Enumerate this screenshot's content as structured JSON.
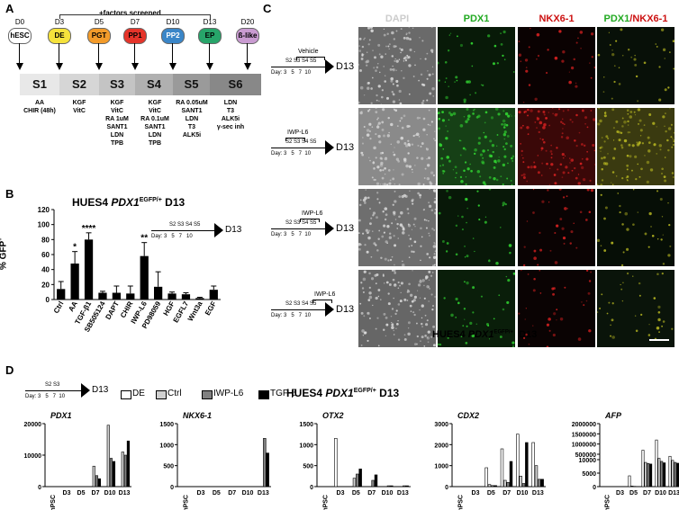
{
  "panelA": {
    "label": "A",
    "screened_label": "+factors screened",
    "days": [
      "D0",
      "D3",
      "D5",
      "D7",
      "D10",
      "D13",
      "D20"
    ],
    "nodes": [
      {
        "name": "hESC",
        "color": "#ffffff"
      },
      {
        "name": "DE",
        "color": "#f5e23c"
      },
      {
        "name": "PGT",
        "color": "#f39b2a"
      },
      {
        "name": "PP1",
        "color": "#e5342a"
      },
      {
        "name": "PP2",
        "color": "#3a86c8"
      },
      {
        "name": "EP",
        "color": "#27a56a"
      },
      {
        "name": "ß-like",
        "color": "#c99bd1"
      }
    ],
    "stages": [
      "S1",
      "S2",
      "S3",
      "S4",
      "S5",
      "S6"
    ],
    "conditions": [
      [
        "AA",
        "CHIR (48h)"
      ],
      [
        "KGF",
        "VitC"
      ],
      [
        "KGF",
        "VitC",
        "RA 1uM",
        "SANT1",
        "LDN",
        "TPB"
      ],
      [
        "KGF",
        "VitC",
        "RA 0.1uM",
        "SANT1",
        "LDN",
        "TPB"
      ],
      [
        "RA 0.05uM",
        "SANT1",
        "LDN",
        "T3",
        "ALK5i"
      ],
      [
        "LDN",
        "T3",
        "ALK5i",
        "γ-sec inh"
      ]
    ]
  },
  "panelB": {
    "label": "B",
    "title_prefix": "HUES4 ",
    "title_gene": "PDX1",
    "title_sup": "EGFP/+",
    "title_suffix": " D13",
    "ylabel": "% GFP",
    "ylabel_sup": "+",
    "inset_day_label": "Day: 3   5   7   10",
    "inset_stages": "S2 S3 S4 S5",
    "inset_end": "D13"
  },
  "chart_data": [
    {
      "type": "bar",
      "categories": [
        "Ctrl",
        "AA",
        "TGF-β1",
        "SB505124",
        "DAPT",
        "CHIR",
        "IWP-L6",
        "PD98059",
        "HGF",
        "EGFL7",
        "Wnt3a",
        "EGF"
      ],
      "values": [
        14,
        48,
        80,
        9,
        9,
        8,
        58,
        17,
        8,
        7,
        2,
        13
      ],
      "errors": [
        10,
        16,
        9,
        2,
        9,
        10,
        18,
        20,
        2,
        2,
        1,
        5
      ],
      "significance": [
        "",
        "*",
        "****",
        "",
        "",
        "",
        "**",
        "",
        "",
        "",
        "",
        ""
      ],
      "ylabel": "% GFP+",
      "ylim": [
        0,
        120
      ],
      "yticks": [
        0,
        20,
        40,
        60,
        80,
        100,
        120
      ]
    },
    {
      "type": "bar",
      "gene": "PDX1",
      "categories": [
        "hPSC",
        "D3",
        "D5",
        "D7",
        "D10",
        "D13"
      ],
      "series": [
        {
          "name": "DE",
          "values": [
            0,
            0,
            0,
            0,
            0,
            0
          ]
        },
        {
          "name": "Ctrl",
          "values": [
            0,
            0,
            0,
            6500,
            19500,
            11000
          ]
        },
        {
          "name": "IWP-L6",
          "values": [
            0,
            0,
            0,
            3500,
            9000,
            10000
          ]
        },
        {
          "name": "TGF-β",
          "values": [
            0,
            0,
            0,
            2500,
            8000,
            14500
          ]
        }
      ],
      "ylim": [
        0,
        20000
      ],
      "yticks": [
        0,
        10000,
        20000
      ]
    },
    {
      "type": "bar",
      "gene": "NKX6-1",
      "categories": [
        "hPSC",
        "D3",
        "D5",
        "D7",
        "D10",
        "D13"
      ],
      "series": [
        {
          "name": "DE",
          "values": [
            0,
            0,
            0,
            0,
            0,
            0
          ]
        },
        {
          "name": "Ctrl",
          "values": [
            0,
            0,
            0,
            0,
            0,
            0
          ]
        },
        {
          "name": "IWP-L6",
          "values": [
            0,
            0,
            0,
            0,
            0,
            1150
          ]
        },
        {
          "name": "TGF-β",
          "values": [
            0,
            0,
            0,
            0,
            0,
            800
          ]
        }
      ],
      "ylim": [
        0,
        1500
      ],
      "yticks": [
        0,
        500,
        1000,
        1500
      ]
    },
    {
      "type": "bar",
      "gene": "OTX2",
      "categories": [
        "hPSC",
        "D3",
        "D5",
        "D7",
        "D10",
        "D13"
      ],
      "series": [
        {
          "name": "DE",
          "values": [
            0,
            1150,
            0,
            0,
            0,
            0
          ]
        },
        {
          "name": "Ctrl",
          "values": [
            0,
            0,
            200,
            0,
            0,
            0
          ]
        },
        {
          "name": "IWP-L6",
          "values": [
            0,
            0,
            300,
            150,
            20,
            20
          ]
        },
        {
          "name": "TGF-β",
          "values": [
            0,
            0,
            420,
            280,
            20,
            20
          ]
        }
      ],
      "ylim": [
        0,
        1500
      ],
      "yticks": [
        0,
        500,
        1000,
        1500
      ]
    },
    {
      "type": "bar",
      "gene": "CDX2",
      "categories": [
        "hPSC",
        "D3",
        "D5",
        "D7",
        "D10",
        "D13"
      ],
      "series": [
        {
          "name": "DE",
          "values": [
            0,
            0,
            900,
            1800,
            2500,
            2100
          ]
        },
        {
          "name": "Ctrl",
          "values": [
            0,
            0,
            100,
            300,
            500,
            1000
          ]
        },
        {
          "name": "IWP-L6",
          "values": [
            0,
            0,
            50,
            200,
            150,
            350
          ]
        },
        {
          "name": "TGF-β",
          "values": [
            0,
            0,
            50,
            1200,
            2100,
            350
          ]
        }
      ],
      "ylim": [
        0,
        3000
      ],
      "yticks": [
        0,
        1000,
        2000,
        3000
      ]
    },
    {
      "type": "bar",
      "gene": "AFP",
      "categories": [
        "hPSC",
        "D3",
        "D5",
        "D7",
        "D10",
        "D13"
      ],
      "series": [
        {
          "name": "DE",
          "values": [
            0,
            0,
            4000,
            700000,
            1200000,
            400000
          ]
        },
        {
          "name": "Ctrl",
          "values": [
            0,
            0,
            200,
            100000,
            300000,
            200000
          ]
        },
        {
          "name": "IWP-L6",
          "values": [
            0,
            0,
            100,
            50000,
            150000,
            100000
          ]
        },
        {
          "name": "TGF-β",
          "values": [
            0,
            0,
            50,
            20000,
            80000,
            60000
          ]
        }
      ],
      "ylim": [
        0,
        2000000
      ],
      "yticks": [
        0,
        5000,
        10000,
        500000,
        1000000,
        1500000,
        2000000
      ],
      "broken_axis": true
    }
  ],
  "panelC": {
    "label": "C",
    "headers": [
      "DAPI",
      "PDX1",
      "NKX6-1",
      "PDX1/NKX6-1"
    ],
    "header_colors": [
      "#cccccc",
      "#22aa22",
      "#cc1111",
      "mix"
    ],
    "rows": [
      {
        "treat": "Vehicle",
        "stages": "S2 S3 S4 S5",
        "day": "Day: 3   5   7  10",
        "end": "D13"
      },
      {
        "treat": "IWP-L6",
        "stages": "S2 S3 S4 S5",
        "day": "Day: 3   5   7  10",
        "end": "D13"
      },
      {
        "treat": "IWP-L6",
        "stages": "S2 S3 S4 S5",
        "day": "Day: 3   5   7  10",
        "end": "D13"
      },
      {
        "treat": "IWP-L6",
        "stages": "S2 S3 S4 S5",
        "day": "Day: 3   5   7  10",
        "end": "D13"
      }
    ],
    "caption_prefix": "HUES4 ",
    "caption_gene": "PDX1",
    "caption_sup": "EGFP/+",
    "caption_suffix": "  D13"
  },
  "panelD": {
    "label": "D",
    "legend": [
      "DE",
      "Ctrl",
      "IWP-L6",
      "TGF-β"
    ],
    "legend_colors": [
      "#ffffff",
      "#d0d0d0",
      "#808080",
      "#000000"
    ],
    "title_prefix": "HUES4 ",
    "title_gene": "PDX1",
    "title_sup": "EGFP/+",
    "title_suffix": " D13",
    "timeline_day": "Day: 3   5   7  10",
    "timeline_stages": "S2 S3",
    "timeline_end": "D13",
    "ytick_labels": [
      [
        "0",
        "10000",
        "20000"
      ],
      [
        "0",
        "500",
        "1000",
        "1500"
      ],
      [
        "0",
        "500",
        "1000",
        "1500"
      ],
      [
        "0",
        "1000",
        "2000",
        "3000"
      ],
      [
        "0",
        "5000",
        "10000",
        "500000",
        "1000000",
        "1500000",
        "2000000"
      ]
    ]
  }
}
